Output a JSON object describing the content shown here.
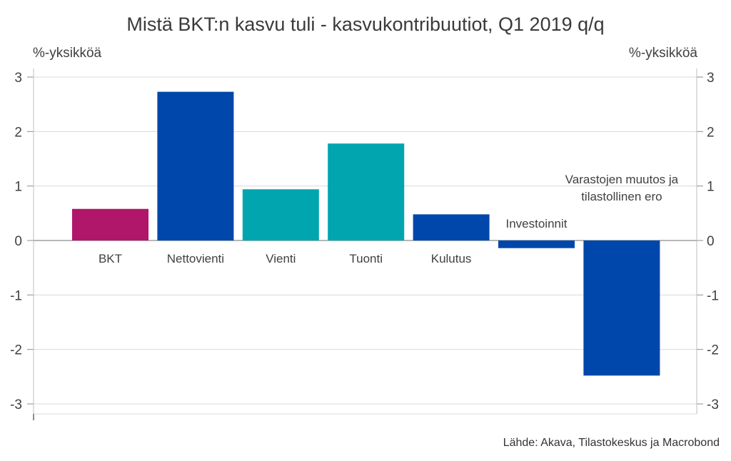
{
  "chart_data": {
    "type": "bar",
    "title": "Mistä BKT:n kasvu tuli - kasvukontribuutiot, Q1 2019 q/q",
    "ylabel_left": "%-yksikköä",
    "ylabel_right": "%-yksikköä",
    "ylim": [
      -3,
      3
    ],
    "yticks": [
      "3",
      "2",
      "1",
      "0",
      "-1",
      "-2",
      "-3"
    ],
    "grid": true,
    "categories": [
      "BKT",
      "Nettovienti",
      "Vienti",
      "Tuonti",
      "Kulutus",
      "Investoinnit",
      "Varastojen muutos ja tilastollinen ero"
    ],
    "category_lines": [
      [
        "BKT"
      ],
      [
        "Nettovienti"
      ],
      [
        "Vienti"
      ],
      [
        "Tuonti"
      ],
      [
        "Kulutus"
      ],
      [
        "Investoinnit"
      ],
      [
        "Varastojen muutos ja",
        "tilastollinen ero"
      ]
    ],
    "values": [
      0.58,
      2.73,
      0.94,
      1.78,
      0.48,
      -0.14,
      -2.48
    ],
    "colors": [
      "#b0166a",
      "#0047ab",
      "#00a5b0",
      "#00a5b0",
      "#0047ab",
      "#0047ab",
      "#0047ab"
    ],
    "source": "Lähde: Akava, Tilastokeskus ja Macrobond"
  }
}
